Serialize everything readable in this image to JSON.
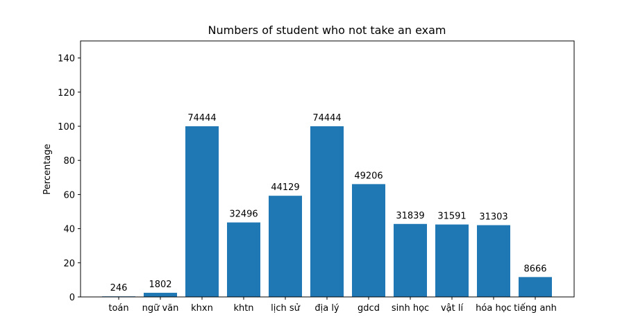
{
  "chart_data": {
    "type": "bar",
    "title": "Numbers of student who not take an exam",
    "xlabel": "",
    "ylabel": "Percentage",
    "ylim": [
      0,
      150
    ],
    "yticks": [
      0,
      20,
      40,
      60,
      80,
      100,
      120,
      140
    ],
    "categories": [
      "toán",
      "ngữ văn",
      "khxn",
      "khtn",
      "lịch sử",
      "địa lý",
      "gdcd",
      "sinh học",
      "vật lí",
      "hóa học",
      "tiếng anh"
    ],
    "values": [
      0.33,
      2.42,
      100,
      43.65,
      59.28,
      100,
      66.1,
      42.77,
      42.44,
      42.05,
      11.64
    ],
    "data_labels": [
      "246",
      "1802",
      "74444",
      "32496",
      "44129",
      "74444",
      "49206",
      "31839",
      "31591",
      "31303",
      "8666"
    ],
    "grid": false,
    "legend": "none",
    "bar_color": "#1f77b4"
  }
}
